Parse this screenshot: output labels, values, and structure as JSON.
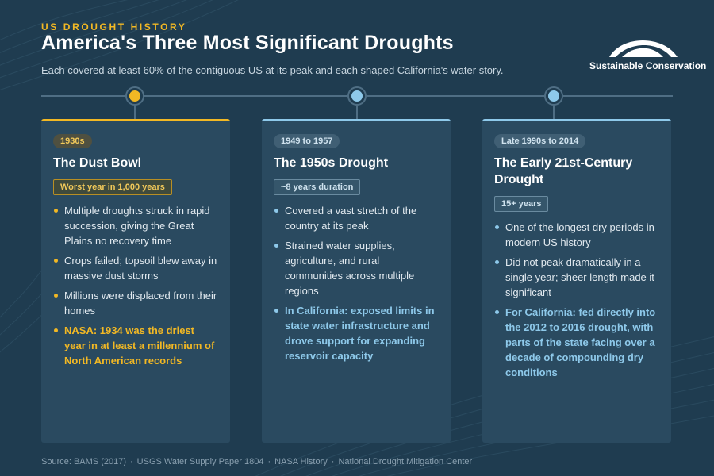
{
  "header": {
    "eyebrow": "US DROUGHT HISTORY",
    "title": "America's Three Most Significant Droughts",
    "subtitle": "Each covered at least 60% of the contiguous US at its peak and each shaped California's water story."
  },
  "logo": {
    "text": "Sustainable Conservation"
  },
  "colors": {
    "accent_gold": "#f2b824",
    "accent_blue": "#8ec9ea",
    "background": "#1f3c50"
  },
  "droughts": [
    {
      "period": "1930s",
      "title": "The Dust Bowl",
      "badge": "Worst year in 1,000 years",
      "points": [
        "Multiple droughts struck in rapid succession, giving the Great Plains no recovery time",
        "Crops failed; topsoil blew away in massive dust storms",
        "Millions were displaced from their homes",
        "NASA: 1934 was the driest year in at least a millennium of North American records"
      ]
    },
    {
      "period": "1949 to 1957",
      "title": "The 1950s Drought",
      "badge": "~8 years duration",
      "points": [
        "Covered a vast stretch of the country at its peak",
        "Strained water supplies, agriculture, and rural communities across multiple regions",
        "In California: exposed limits in state water infrastructure and drove support for expanding reservoir capacity"
      ]
    },
    {
      "period": "Late 1990s to 2014",
      "title": "The Early 21st-Century Drought",
      "badge": "15+ years",
      "points": [
        "One of the longest dry periods in modern US history",
        "Did not peak dramatically in a single year; sheer length made it significant",
        "For California: fed directly into the 2012 to 2016 drought, with parts of the state facing over a decade of compounding dry conditions"
      ]
    }
  ],
  "footer": {
    "sources": [
      "Source: BAMS (2017)",
      "USGS Water Supply Paper 1804",
      "NASA History",
      "National Drought Mitigation Center"
    ],
    "separator": "·"
  }
}
